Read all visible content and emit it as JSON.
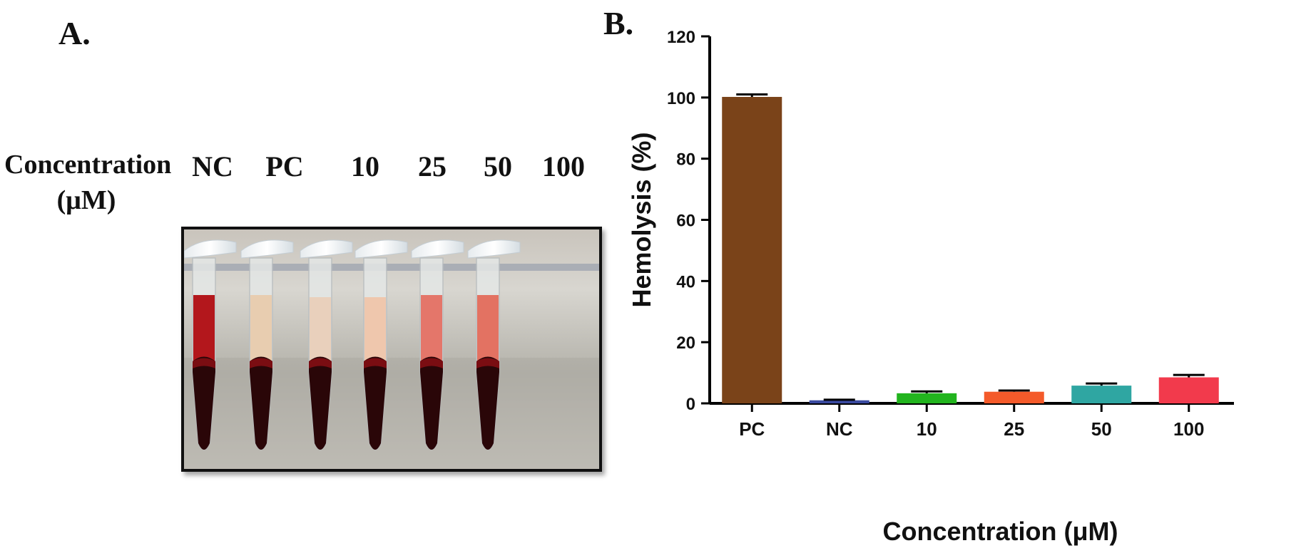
{
  "panelA": {
    "label": "A.",
    "concentration_label_line1": "Concentration",
    "concentration_label_line2": "(μM)",
    "tube_labels": [
      "NC",
      "PC",
      "10",
      "25",
      "50",
      "100"
    ]
  },
  "panelB": {
    "label": "B."
  },
  "chart_data": {
    "type": "bar",
    "categories": [
      "PC",
      "NC",
      "10",
      "25",
      "50",
      "100"
    ],
    "values": [
      100.2,
      1.0,
      3.3,
      3.8,
      5.8,
      8.5
    ],
    "errors": [
      0.8,
      0.2,
      0.6,
      0.4,
      0.7,
      0.8
    ],
    "bar_colors": [
      "#7a4319",
      "#3a4aa0",
      "#22b41e",
      "#f45a2a",
      "#2fa6a2",
      "#f23a4c"
    ],
    "xlabel": "Concentration (μM)",
    "ylabel": "Hemolysis (%)",
    "ylim": [
      0,
      120
    ],
    "yticks": [
      0,
      20,
      40,
      60,
      80,
      100,
      120
    ],
    "grid": false
  }
}
